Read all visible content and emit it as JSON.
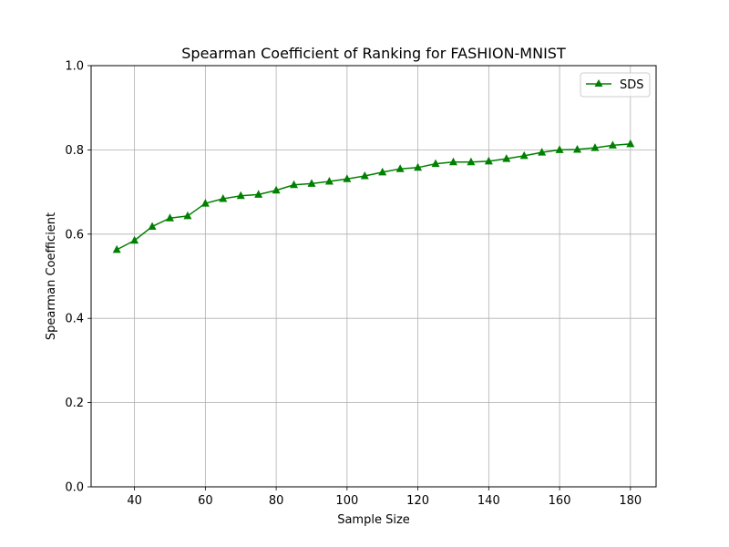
{
  "chart_data": {
    "type": "line",
    "title": "Spearman Coefficient of Ranking for FASHION-MNIST",
    "xlabel": "Sample Size",
    "ylabel": "Spearman Coefficient",
    "xlim": [
      27.75,
      187.25
    ],
    "ylim": [
      0.0,
      1.0
    ],
    "xticks": [
      40,
      60,
      80,
      100,
      120,
      140,
      160,
      180
    ],
    "yticks": [
      0.0,
      0.2,
      0.4,
      0.6,
      0.8,
      1.0
    ],
    "grid": true,
    "legend_position": "top-right",
    "series": [
      {
        "name": "SDS",
        "color": "#008000",
        "marker": "triangle-up",
        "x": [
          35,
          40,
          45,
          50,
          55,
          60,
          65,
          70,
          75,
          80,
          85,
          90,
          95,
          100,
          105,
          110,
          115,
          120,
          125,
          130,
          135,
          140,
          145,
          150,
          155,
          160,
          165,
          170,
          175,
          180
        ],
        "y": [
          0.563,
          0.585,
          0.618,
          0.638,
          0.643,
          0.673,
          0.684,
          0.691,
          0.694,
          0.704,
          0.717,
          0.72,
          0.725,
          0.731,
          0.738,
          0.747,
          0.755,
          0.758,
          0.767,
          0.771,
          0.771,
          0.773,
          0.779,
          0.786,
          0.794,
          0.8,
          0.801,
          0.805,
          0.811,
          0.814
        ]
      }
    ]
  }
}
